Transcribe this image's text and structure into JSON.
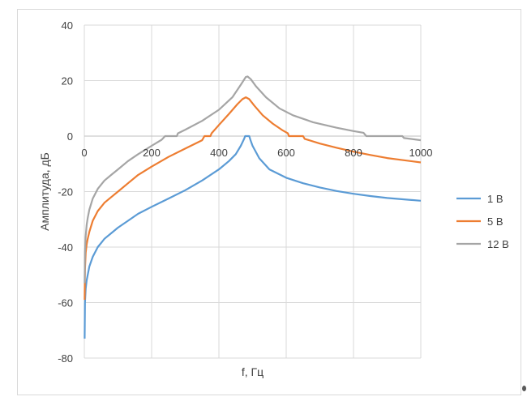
{
  "chart_data": {
    "type": "line",
    "title": "",
    "xlabel": "f, Гц",
    "ylabel": "Амплитуда, дБ",
    "xlim": [
      0,
      1000
    ],
    "ylim": [
      -80,
      40
    ],
    "x_ticks": [
      "0",
      "200",
      "400",
      "600",
      "800",
      "1000"
    ],
    "y_ticks": [
      "40",
      "20",
      "0",
      "-20",
      "-40",
      "-60",
      "-80"
    ],
    "grid": true,
    "legend_position": "right",
    "series": [
      {
        "name": "1 В",
        "color": "#5b9bd5",
        "points": [
          [
            1,
            -73
          ],
          [
            2,
            -60
          ],
          [
            4,
            -55
          ],
          [
            7,
            -52
          ],
          [
            10,
            -50
          ],
          [
            15,
            -47
          ],
          [
            25,
            -43.5
          ],
          [
            40,
            -40
          ],
          [
            60,
            -37
          ],
          [
            80,
            -35
          ],
          [
            100,
            -33
          ],
          [
            130,
            -30.5
          ],
          [
            160,
            -28
          ],
          [
            200,
            -25.5
          ],
          [
            250,
            -22.5
          ],
          [
            300,
            -19.5
          ],
          [
            350,
            -16
          ],
          [
            400,
            -12
          ],
          [
            430,
            -9
          ],
          [
            450,
            -6.5
          ],
          [
            465,
            -3.5
          ],
          [
            475,
            -1
          ],
          [
            478,
            0
          ],
          [
            490,
            0
          ],
          [
            494,
            -1.5
          ],
          [
            500,
            -3.5
          ],
          [
            520,
            -8
          ],
          [
            550,
            -12
          ],
          [
            600,
            -15
          ],
          [
            650,
            -17
          ],
          [
            700,
            -18.5
          ],
          [
            750,
            -19.8
          ],
          [
            800,
            -20.8
          ],
          [
            850,
            -21.6
          ],
          [
            900,
            -22.3
          ],
          [
            950,
            -22.8
          ],
          [
            1000,
            -23.3
          ]
        ]
      },
      {
        "name": "5 В",
        "color": "#ed7d31",
        "points": [
          [
            1,
            -59
          ],
          [
            2,
            -48
          ],
          [
            4,
            -42
          ],
          [
            7,
            -39
          ],
          [
            10,
            -37
          ],
          [
            15,
            -34.5
          ],
          [
            25,
            -30.5
          ],
          [
            40,
            -27
          ],
          [
            60,
            -24
          ],
          [
            80,
            -22
          ],
          [
            100,
            -20
          ],
          [
            130,
            -17
          ],
          [
            160,
            -14
          ],
          [
            200,
            -11
          ],
          [
            250,
            -7.5
          ],
          [
            300,
            -4.5
          ],
          [
            350,
            -1.5
          ],
          [
            357,
            0
          ],
          [
            375,
            0
          ],
          [
            378,
            1
          ],
          [
            400,
            4
          ],
          [
            430,
            8
          ],
          [
            455,
            11.5
          ],
          [
            470,
            13.3
          ],
          [
            480,
            14
          ],
          [
            490,
            13.3
          ],
          [
            505,
            11
          ],
          [
            530,
            7.5
          ],
          [
            560,
            4.5
          ],
          [
            590,
            2
          ],
          [
            605,
            1
          ],
          [
            608,
            0
          ],
          [
            650,
            0
          ],
          [
            655,
            -1
          ],
          [
            700,
            -2.7
          ],
          [
            750,
            -4.2
          ],
          [
            800,
            -5.6
          ],
          [
            850,
            -6.8
          ],
          [
            900,
            -7.9
          ],
          [
            950,
            -8.7
          ],
          [
            1000,
            -9.5
          ]
        ]
      },
      {
        "name": "12 В",
        "color": "#a5a5a5",
        "points": [
          [
            1,
            -53
          ],
          [
            2,
            -42
          ],
          [
            4,
            -36
          ],
          [
            7,
            -32
          ],
          [
            10,
            -29.5
          ],
          [
            15,
            -26.5
          ],
          [
            25,
            -22.5
          ],
          [
            40,
            -19
          ],
          [
            60,
            -16
          ],
          [
            80,
            -14
          ],
          [
            100,
            -12
          ],
          [
            130,
            -9
          ],
          [
            160,
            -6.5
          ],
          [
            200,
            -3.5
          ],
          [
            230,
            -1.3
          ],
          [
            240,
            0
          ],
          [
            275,
            0
          ],
          [
            278,
            1
          ],
          [
            300,
            2.3
          ],
          [
            350,
            5.5
          ],
          [
            400,
            9.5
          ],
          [
            440,
            14
          ],
          [
            465,
            18.5
          ],
          [
            480,
            21.3
          ],
          [
            485,
            21.5
          ],
          [
            495,
            20.5
          ],
          [
            510,
            18
          ],
          [
            540,
            14
          ],
          [
            580,
            10
          ],
          [
            620,
            7.5
          ],
          [
            680,
            5
          ],
          [
            750,
            3
          ],
          [
            800,
            1.8
          ],
          [
            830,
            1.2
          ],
          [
            838,
            0
          ],
          [
            945,
            0
          ],
          [
            950,
            -0.7
          ],
          [
            1000,
            -1.5
          ]
        ]
      }
    ]
  }
}
